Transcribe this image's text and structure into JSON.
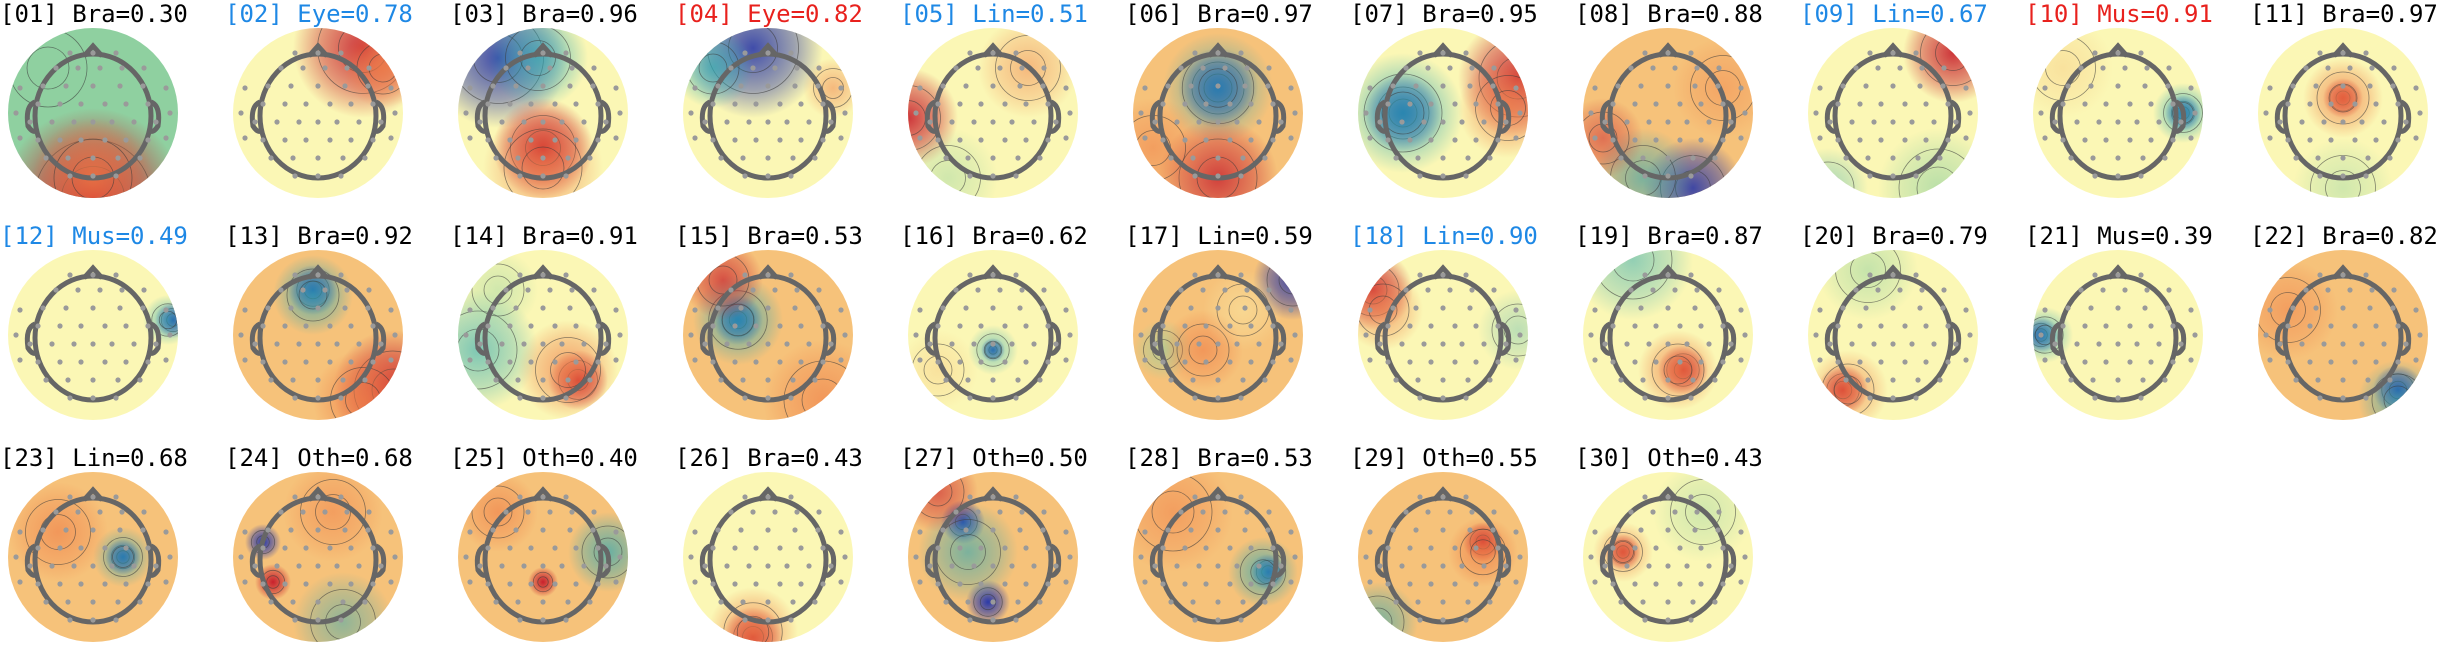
{
  "palette": {
    "label_default": "#000000",
    "label_blue": "#1e88e5",
    "label_red": "#e8211d",
    "head_outline": "#666666",
    "sensor_dot": "#9a9a9a",
    "colormap": [
      "#2b3aa8",
      "#2aa7b4",
      "#8fd0a0",
      "#fbf7b5",
      "#f6c27a",
      "#ef7b45",
      "#c8202c"
    ]
  },
  "components": [
    {
      "label": "[01] Bra=0.30",
      "color": "default",
      "pattern": "gradient-bottom-red"
    },
    {
      "label": "[02] Eye=0.78",
      "color": "blue",
      "pattern": "frontal-red"
    },
    {
      "label": "[03] Bra=0.96",
      "color": "default",
      "pattern": "frontal-blue-posterior-red"
    },
    {
      "label": "[04] Eye=0.82",
      "color": "red",
      "pattern": "frontal-blue"
    },
    {
      "label": "[05] Lin=0.51",
      "color": "blue",
      "pattern": "lateral-red"
    },
    {
      "label": "[06] Bra=0.97",
      "color": "default",
      "pattern": "central-blue"
    },
    {
      "label": "[07] Bra=0.95",
      "color": "default",
      "pattern": "left-blue-right-red"
    },
    {
      "label": "[08] Bra=0.88",
      "color": "default",
      "pattern": "bottom-blue"
    },
    {
      "label": "[09] Lin=0.67",
      "color": "blue",
      "pattern": "right-red"
    },
    {
      "label": "[10] Mus=0.91",
      "color": "red",
      "pattern": "right-temporal-blue"
    },
    {
      "label": "[11] Bra=0.97",
      "color": "default",
      "pattern": "central-red"
    },
    {
      "label": "[12] Mus=0.49",
      "color": "blue",
      "pattern": "right-edge-blue"
    },
    {
      "label": "[13] Bra=0.92",
      "color": "default",
      "pattern": "frontal-blue-center"
    },
    {
      "label": "[14] Bra=0.91",
      "color": "default",
      "pattern": "right-posterior-red"
    },
    {
      "label": "[15] Bra=0.53",
      "color": "default",
      "pattern": "left-blue-ring-red"
    },
    {
      "label": "[16] Bra=0.62",
      "color": "default",
      "pattern": "central-small-blue"
    },
    {
      "label": "[17] Lin=0.59",
      "color": "default",
      "pattern": "mixed-orange"
    },
    {
      "label": "[18] Lin=0.90",
      "color": "blue",
      "pattern": "left-red"
    },
    {
      "label": "[19] Bra=0.87",
      "color": "default",
      "pattern": "posterior-red"
    },
    {
      "label": "[20] Bra=0.79",
      "color": "default",
      "pattern": "left-posterior-red"
    },
    {
      "label": "[21] Mus=0.39",
      "color": "default",
      "pattern": "left-edge-blue"
    },
    {
      "label": "[22] Bra=0.82",
      "color": "default",
      "pattern": "bottom-right-blue"
    },
    {
      "label": "[23] Lin=0.68",
      "color": "default",
      "pattern": "right-blue-orange"
    },
    {
      "label": "[24] Oth=0.68",
      "color": "default",
      "pattern": "left-blue-red"
    },
    {
      "label": "[25] Oth=0.40",
      "color": "default",
      "pattern": "posterior-red-right-blue"
    },
    {
      "label": "[26] Bra=0.43",
      "color": "default",
      "pattern": "bottom-left-red"
    },
    {
      "label": "[27] Oth=0.50",
      "color": "default",
      "pattern": "left-blue-two"
    },
    {
      "label": "[28] Bra=0.53",
      "color": "default",
      "pattern": "right-blue"
    },
    {
      "label": "[29] Oth=0.55",
      "color": "default",
      "pattern": "right-red-spot"
    },
    {
      "label": "[30] Oth=0.43",
      "color": "default",
      "pattern": "left-red-ring"
    }
  ]
}
